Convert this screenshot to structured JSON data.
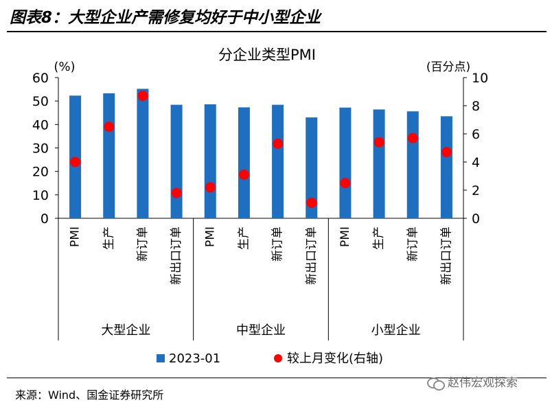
{
  "header": {
    "title": "图表8：大型企业产需修复均好于中小型企业"
  },
  "footer": {
    "source": "来源：Wind、国金证券研究所",
    "watermark": "赵伟宏观探索"
  },
  "chart_data": {
    "type": "bar",
    "title": "分企业类型PMI",
    "left_axis": {
      "unit": "(%)",
      "ylim": [
        0,
        60
      ],
      "ticks": [
        "0",
        "10",
        "20",
        "30",
        "40",
        "50",
        "60"
      ]
    },
    "right_axis": {
      "unit": "(百分点)",
      "ylim": [
        0,
        10
      ],
      "ticks": [
        "0",
        "2",
        "4",
        "6",
        "8",
        "10"
      ]
    },
    "categories": [
      "PMI",
      "生产",
      "新订单",
      "新出口订单",
      "PMI",
      "生产",
      "新订单",
      "新出口订单",
      "PMI",
      "生产",
      "新订单",
      "新出口订单"
    ],
    "groups": [
      {
        "label": "大型企业",
        "start": 0,
        "count": 4
      },
      {
        "label": "中型企业",
        "start": 4,
        "count": 4
      },
      {
        "label": "小型企业",
        "start": 8,
        "count": 4
      }
    ],
    "series": [
      {
        "name": "2023-01",
        "type": "bar",
        "axis": "left",
        "color": "#1f6fc0",
        "values": [
          52.3,
          53.3,
          55.2,
          48.4,
          48.6,
          47.3,
          48.4,
          43.0,
          47.2,
          46.4,
          45.6,
          43.5
        ]
      },
      {
        "name": "较上月变化(右轴)",
        "type": "scatter",
        "axis": "right",
        "color": "#ff0000",
        "values": [
          4.0,
          6.5,
          8.7,
          1.8,
          2.2,
          3.1,
          5.3,
          1.1,
          2.5,
          5.4,
          5.7,
          4.7
        ]
      }
    ],
    "legend_position": "bottom",
    "grid": false
  }
}
